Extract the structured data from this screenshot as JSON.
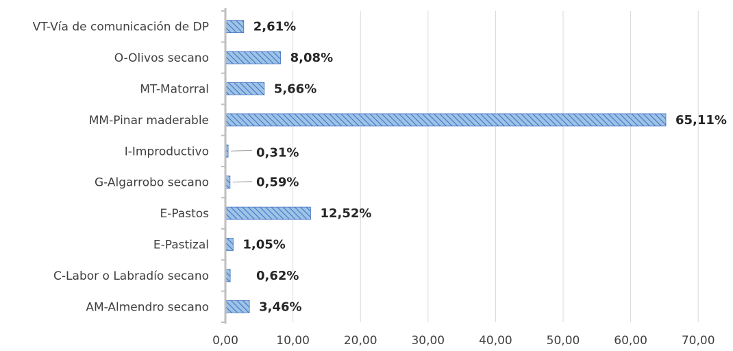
{
  "chart_data": {
    "type": "bar",
    "orientation": "horizontal",
    "categories": [
      "VT-Vía de comunicación de DP",
      "O-Olivos secano",
      "MT-Matorral",
      "MM-Pinar maderable",
      "I-Improductivo",
      "G-Algarrobo secano",
      "E-Pastos",
      "E-Pastizal",
      "C-Labor o Labradío secano",
      "AM-Almendro secano"
    ],
    "values": [
      2.61,
      8.08,
      5.66,
      65.11,
      0.31,
      0.59,
      12.52,
      1.05,
      0.62,
      3.46
    ],
    "data_labels": [
      "2,61%",
      "8,08%",
      "5,66%",
      "65,11%",
      "0,31%",
      "0,59%",
      "12,52%",
      "1,05%",
      "0,62%",
      "3,46%"
    ],
    "x_ticks": [
      "0,00",
      "10,00",
      "20,00",
      "30,00",
      "40,00",
      "50,00",
      "60,00",
      "70,00"
    ],
    "xlim": [
      0,
      70
    ],
    "grid": true,
    "bar_color": "#9dc3e6",
    "bar_hatch_color": "#4472c4",
    "title": "",
    "xlabel": "",
    "ylabel": ""
  }
}
